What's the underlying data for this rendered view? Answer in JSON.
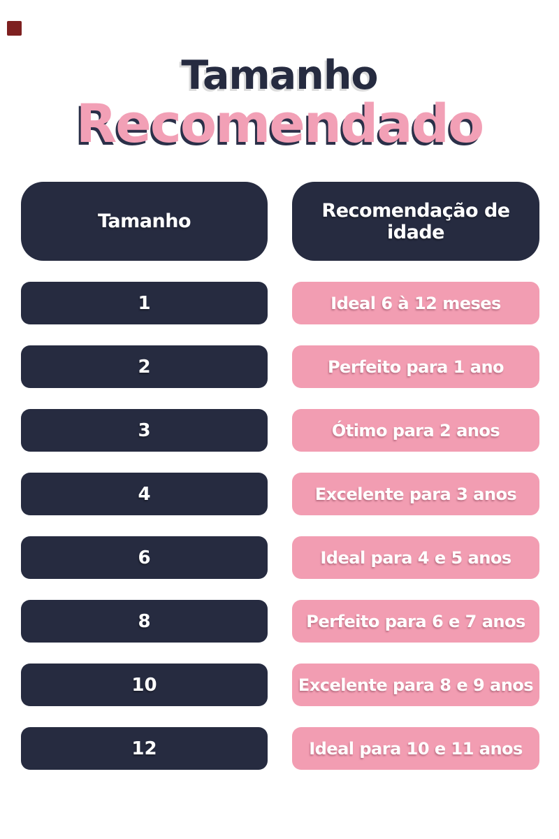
{
  "title": {
    "line1": "Tamanho",
    "line2": "Recomendado"
  },
  "colors": {
    "navy": "#262b40",
    "pink": "#f29db2",
    "title_pink": "#f2a0b6",
    "title_shadow_gray": "#dcdcdc",
    "corner_marker_red": "#7e2020",
    "text_white": "#ffffff",
    "background": "#ffffff"
  },
  "table": {
    "headers": [
      {
        "label": "Tamanho"
      },
      {
        "label": "Recomendação de idade"
      }
    ],
    "rows": [
      {
        "size": "1",
        "recommendation": "Ideal 6 à 12 meses"
      },
      {
        "size": "2",
        "recommendation": "Perfeito para 1 ano"
      },
      {
        "size": "3",
        "recommendation": "Ótimo para 2 anos"
      },
      {
        "size": "4",
        "recommendation": "Excelente para 3 anos"
      },
      {
        "size": "6",
        "recommendation": "Ideal para 4 e 5 anos"
      },
      {
        "size": "8",
        "recommendation": "Perfeito para 6 e 7 anos"
      },
      {
        "size": "10",
        "recommendation": "Excelente para 8 e 9 anos"
      },
      {
        "size": "12",
        "recommendation": "Ideal para 10 e 11 anos"
      }
    ]
  },
  "chart_data": {
    "type": "table",
    "title": "Tamanho Recomendado",
    "columns": [
      "Tamanho",
      "Recomendação de idade"
    ],
    "rows": [
      [
        "1",
        "Ideal 6 à 12 meses"
      ],
      [
        "2",
        "Perfeito para 1 ano"
      ],
      [
        "3",
        "Ótimo para 2 anos"
      ],
      [
        "4",
        "Excelente para 3 anos"
      ],
      [
        "6",
        "Ideal para 4 e 5 anos"
      ],
      [
        "8",
        "Perfeito para 6 e 7 anos"
      ],
      [
        "10",
        "Excelente para 8 e 9 anos"
      ],
      [
        "12",
        "Ideal para 10 e 11 anos"
      ]
    ]
  }
}
